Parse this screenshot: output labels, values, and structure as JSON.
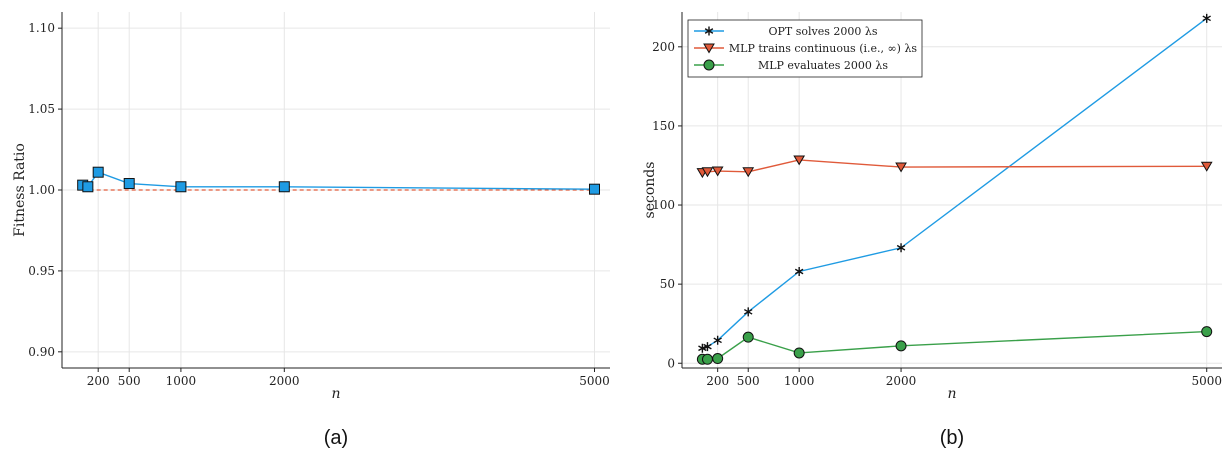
{
  "chart_data": [
    {
      "type": "line",
      "caption": "(a)",
      "xlabel": "n",
      "ylabel": "Fitness Ratio",
      "xlim": [
        -150,
        5150
      ],
      "ylim": [
        0.89,
        1.11
      ],
      "xticks": [
        200,
        500,
        1000,
        2000,
        5000
      ],
      "yticks": [
        0.9,
        0.95,
        1.0,
        1.05,
        1.1
      ],
      "ytick_labels": [
        "0.90",
        "0.95",
        "1.00",
        "1.05",
        "1.10"
      ],
      "grid": true,
      "legend": null,
      "series": [
        {
          "color": "#1f9be3",
          "marker": "square",
          "x": [
            50,
            100,
            200,
            500,
            1000,
            2000,
            5000
          ],
          "y": [
            1.003,
            1.002,
            1.011,
            1.004,
            1.002,
            1.002,
            1.0005
          ]
        }
      ],
      "reference_line": {
        "y": 1.0,
        "color": "#e05a3a",
        "style": "dashed"
      }
    },
    {
      "type": "line",
      "caption": "(b)",
      "xlabel": "n",
      "ylabel": "seconds",
      "xlim": [
        -150,
        5150
      ],
      "ylim": [
        -3,
        222
      ],
      "xticks": [
        200,
        500,
        1000,
        2000,
        5000
      ],
      "yticks": [
        0,
        50,
        100,
        150,
        200
      ],
      "ytick_labels": [
        "0",
        "50",
        "100",
        "150",
        "200"
      ],
      "grid": true,
      "legend": "top-left",
      "series": [
        {
          "name": "OPT solves 2000 λs",
          "color": "#1f9be3",
          "marker": "star",
          "x": [
            50,
            100,
            200,
            500,
            1000,
            2000,
            5000
          ],
          "y": [
            9.5,
            10.5,
            14.5,
            32.5,
            58,
            73,
            218
          ]
        },
        {
          "name": "MLP trains continuous (i.e., ∞) λs",
          "color": "#e05a3a",
          "marker": "triangle-down",
          "x": [
            50,
            100,
            200,
            500,
            1000,
            2000,
            5000
          ],
          "y": [
            120.5,
            121,
            121.5,
            121,
            128.5,
            124,
            124.5
          ]
        },
        {
          "name": "MLP evaluates 2000 λs",
          "color": "#3aa04a",
          "marker": "circle",
          "x": [
            50,
            100,
            200,
            500,
            1000,
            2000,
            5000
          ],
          "y": [
            2.5,
            2.5,
            3,
            16.5,
            6.5,
            11,
            20
          ]
        }
      ]
    }
  ]
}
